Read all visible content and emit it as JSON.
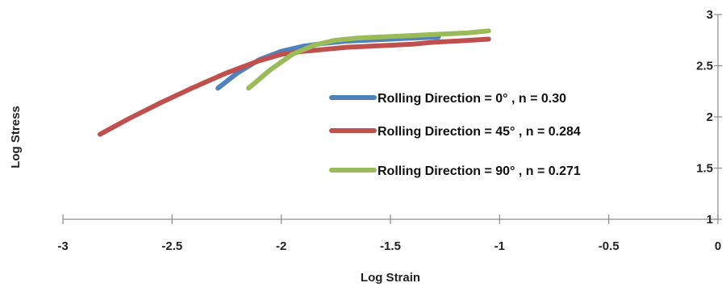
{
  "chart_data": {
    "type": "line",
    "xlabel": "Log Strain",
    "ylabel": "Log Stress",
    "xlim": [
      -3,
      0
    ],
    "ylim": [
      1,
      3
    ],
    "x_ticks": [
      -3,
      -2.5,
      -2,
      -1.5,
      -1,
      -0.5,
      0
    ],
    "y_ticks": [
      1,
      1.5,
      2,
      2.5,
      3
    ],
    "x_tick_labels": [
      "-3",
      "-2.5",
      "-2",
      "-1.5",
      "-1",
      "-0.5",
      "0"
    ],
    "y_tick_labels": [
      "1",
      "1.5",
      "2",
      "2.5",
      "3"
    ],
    "grid": false,
    "legend_position": "center-right",
    "series": [
      {
        "name": "Rolling Direction = 0° , n = 0.30",
        "color": "#4F81BD",
        "x": [
          -2.29,
          -2.2,
          -2.1,
          -2.0,
          -1.9,
          -1.8,
          -1.7,
          -1.6,
          -1.5,
          -1.4,
          -1.28
        ],
        "y": [
          2.28,
          2.43,
          2.56,
          2.64,
          2.69,
          2.72,
          2.74,
          2.75,
          2.76,
          2.77,
          2.78
        ]
      },
      {
        "name": "Rolling Direction = 45° , n = 0.284",
        "color": "#C0504D",
        "x": [
          -2.83,
          -2.7,
          -2.55,
          -2.4,
          -2.25,
          -2.1,
          -2.0,
          -1.9,
          -1.8,
          -1.7,
          -1.6,
          -1.5,
          -1.4,
          -1.3,
          -1.2,
          -1.05
        ],
        "y": [
          1.83,
          1.98,
          2.14,
          2.29,
          2.43,
          2.55,
          2.61,
          2.64,
          2.66,
          2.68,
          2.69,
          2.7,
          2.71,
          2.73,
          2.74,
          2.76
        ]
      },
      {
        "name": "Rolling Direction = 90° , n = 0.271",
        "color": "#9BBB59",
        "x": [
          -2.15,
          -2.05,
          -1.95,
          -1.85,
          -1.75,
          -1.65,
          -1.55,
          -1.45,
          -1.35,
          -1.25,
          -1.15,
          -1.05
        ],
        "y": [
          2.28,
          2.46,
          2.61,
          2.7,
          2.75,
          2.77,
          2.78,
          2.79,
          2.8,
          2.81,
          2.82,
          2.84
        ]
      }
    ]
  }
}
